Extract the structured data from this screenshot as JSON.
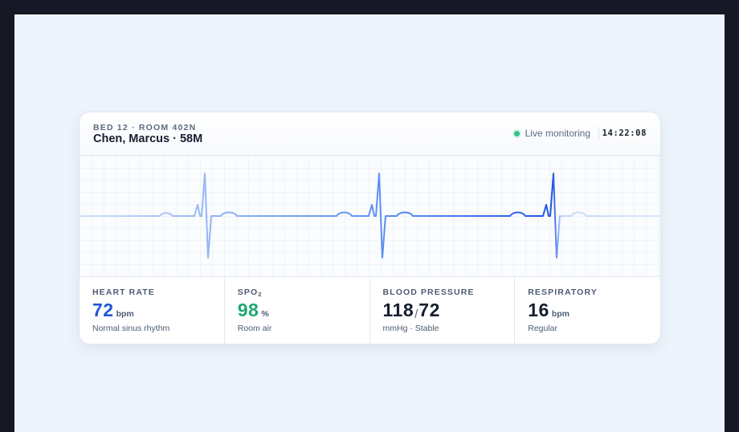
{
  "header": {
    "bed_room": "BED 12 · ROOM 402N",
    "patient": "Chen, Marcus · 58M",
    "status_text": "Live monitoring",
    "time": "14:22:08"
  },
  "vitals": {
    "heart_rate": {
      "label": "HEART RATE",
      "value": "72",
      "unit": "bpm",
      "note": "Normal sinus rhythm"
    },
    "spo2": {
      "label_main": "SPO",
      "label_sub": "2",
      "value": "98",
      "unit": "%",
      "note": "Room air"
    },
    "blood_pressure": {
      "label": "BLOOD PRESSURE",
      "systolic": "118",
      "separator": "/",
      "diastolic": "72",
      "note": "mmHg · Stable"
    },
    "respiratory": {
      "label": "RESPIRATORY",
      "value": "16",
      "unit": "bpm",
      "note": "Regular"
    }
  },
  "colors": {
    "accent_blue": "#2156d9",
    "success_green": "#1ea872",
    "status_dot": "#34c48b",
    "text_dark": "#161e2e"
  }
}
